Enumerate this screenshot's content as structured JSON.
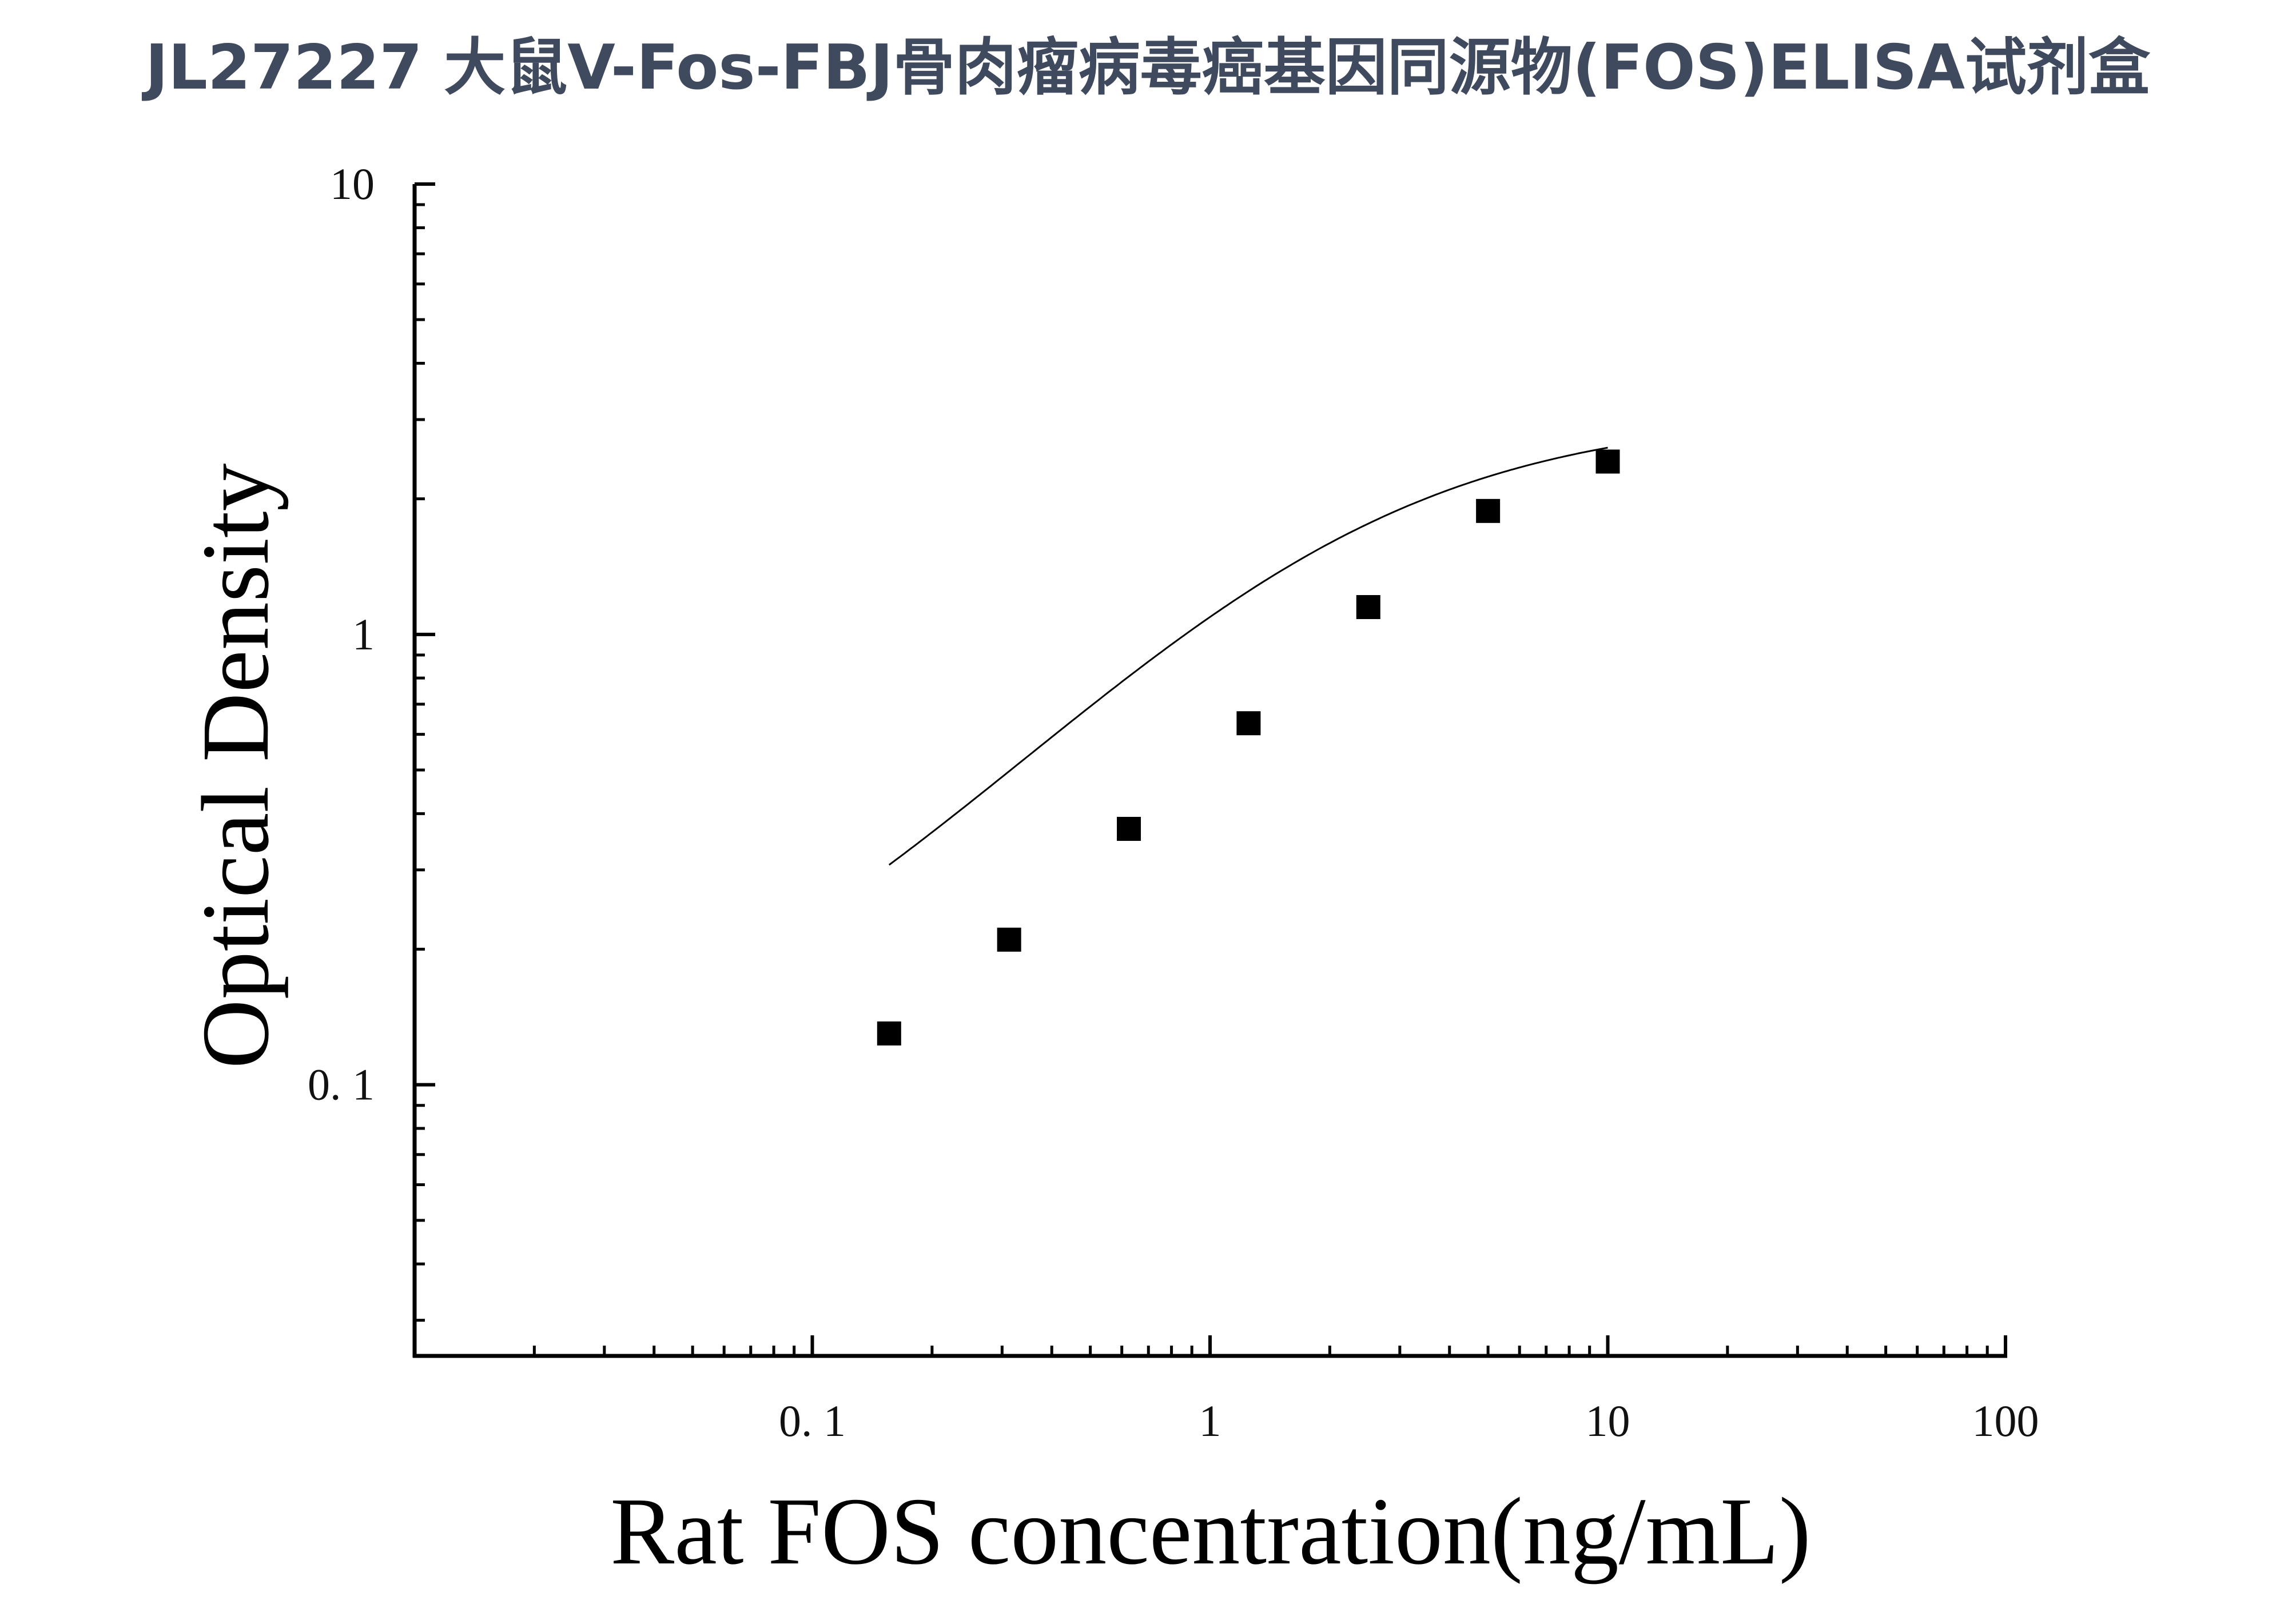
{
  "chart_data": {
    "type": "scatter",
    "title": "JL27227 大鼠V-Fos-FBJ骨肉瘤病毒癌基因同源物(FOS)ELISA试剂盒",
    "xlabel": "Rat FOS concentration(ng/mL)",
    "ylabel": "Optical Density",
    "x_scale": "log",
    "y_scale": "log",
    "xlim": [
      0.01,
      100
    ],
    "ylim": [
      0.025,
      10
    ],
    "x_ticks": [
      {
        "value": 0.1,
        "label": "0. 1"
      },
      {
        "value": 1,
        "label": "1"
      },
      {
        "value": 10,
        "label": "10"
      },
      {
        "value": 100,
        "label": "100"
      }
    ],
    "y_ticks": [
      {
        "value": 0.1,
        "label": "0. 1"
      },
      {
        "value": 1,
        "label": "1"
      },
      {
        "value": 10,
        "label": "10"
      }
    ],
    "grid": false,
    "legend": "none",
    "series": [
      {
        "marker": "square",
        "color": "#000000",
        "x": [
          0.156,
          0.3125,
          0.625,
          1.25,
          2.5,
          5,
          10
        ],
        "y": [
          0.13,
          0.21,
          0.37,
          0.635,
          1.15,
          1.88,
          2.42
        ]
      }
    ],
    "fit_curve": {
      "type": "four-parameter-logistic",
      "color": "#000000",
      "x_range": [
        0.156,
        10
      ],
      "params": {
        "bottom": 0.09,
        "top": 3.1,
        "ec50": 2.0,
        "hill": 1.0
      }
    }
  }
}
